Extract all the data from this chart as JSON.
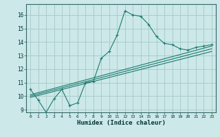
{
  "xlabel": "Humidex (Indice chaleur)",
  "background_color": "#cce8e8",
  "grid_color": "#aacccc",
  "line_color": "#1a7a6e",
  "xlim": [
    -0.5,
    23.5
  ],
  "ylim": [
    8.8,
    16.8
  ],
  "yticks": [
    9,
    10,
    11,
    12,
    13,
    14,
    15,
    16
  ],
  "xticks": [
    0,
    1,
    2,
    3,
    4,
    5,
    6,
    7,
    8,
    9,
    10,
    11,
    12,
    13,
    14,
    15,
    16,
    17,
    18,
    19,
    20,
    21,
    22,
    23
  ],
  "series": [
    [
      0,
      10.5
    ],
    [
      1,
      9.7
    ],
    [
      2,
      8.8
    ],
    [
      3,
      9.8
    ],
    [
      4,
      10.5
    ],
    [
      5,
      9.3
    ],
    [
      6,
      9.5
    ],
    [
      7,
      11.0
    ],
    [
      8,
      11.1
    ],
    [
      9,
      12.8
    ],
    [
      10,
      13.3
    ],
    [
      11,
      14.5
    ],
    [
      12,
      16.3
    ],
    [
      13,
      16.0
    ],
    [
      14,
      15.9
    ],
    [
      15,
      15.3
    ],
    [
      16,
      14.4
    ],
    [
      17,
      13.9
    ],
    [
      18,
      13.8
    ],
    [
      19,
      13.5
    ],
    [
      20,
      13.4
    ],
    [
      21,
      13.6
    ],
    [
      22,
      13.7
    ],
    [
      23,
      13.8
    ]
  ],
  "straight_lines": [
    [
      [
        0,
        9.9
      ],
      [
        23,
        13.3
      ]
    ],
    [
      [
        0,
        10.0
      ],
      [
        23,
        13.5
      ]
    ],
    [
      [
        0,
        10.1
      ],
      [
        23,
        13.7
      ]
    ]
  ]
}
